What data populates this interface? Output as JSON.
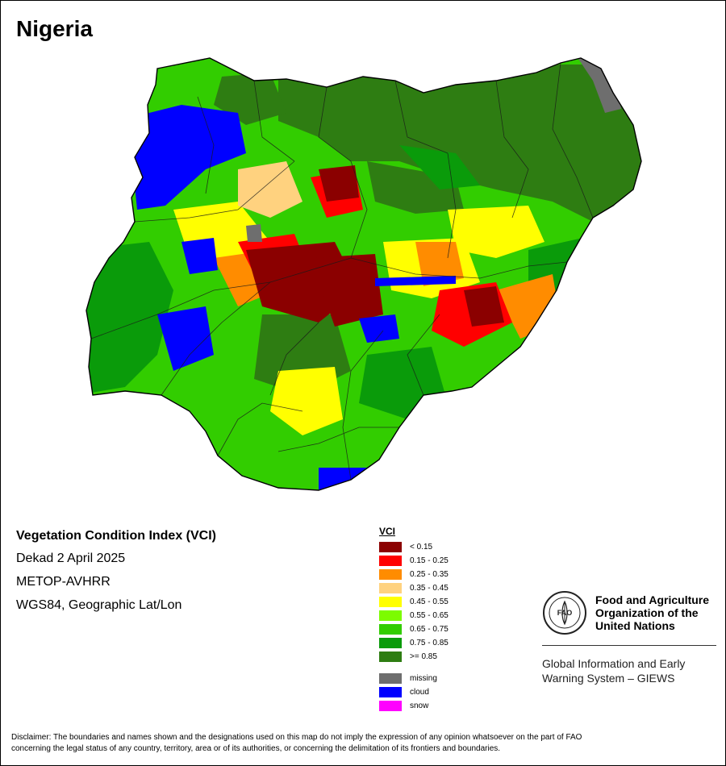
{
  "country": "Nigeria",
  "info": {
    "title": "Vegetation Condition Index (VCI)",
    "period": "Dekad 2 April 2025",
    "sensor": "METOP-AVHRR",
    "projection": "WGS84, Geographic Lat/Lon"
  },
  "legend": {
    "title": "VCI",
    "classes": [
      {
        "label": "< 0.15",
        "color": "#8b0000"
      },
      {
        "label": "0.15 - 0.25",
        "color": "#ff0000"
      },
      {
        "label": "0.25 - 0.35",
        "color": "#ff8c00"
      },
      {
        "label": "0.35 - 0.45",
        "color": "#ffd27f"
      },
      {
        "label": "0.45 - 0.55",
        "color": "#ffff00"
      },
      {
        "label": "0.55 - 0.65",
        "color": "#7cfc00"
      },
      {
        "label": "0.65 - 0.75",
        "color": "#32cd00"
      },
      {
        "label": "0.75 - 0.85",
        "color": "#0a9b0a"
      },
      {
        "label": ">= 0.85",
        "color": "#2e7d12"
      }
    ],
    "special": [
      {
        "label": "missing",
        "color": "#6e6e6e"
      },
      {
        "label": "cloud",
        "color": "#0000ff"
      },
      {
        "label": "snow",
        "color": "#ff00ff"
      }
    ]
  },
  "organization": {
    "name_line1": "Food and Agriculture",
    "name_line2": "Organization of the",
    "name_line3": "United Nations",
    "system_line1": "Global Information and Early",
    "system_line2": "Warning System – GIEWS",
    "logo_text": "FAO"
  },
  "disclaimer_line1": "Disclaimer: The boundaries and names shown and the designations used on this map do not imply the expression of any opinion whatsoever on the part of FAO",
  "disclaimer_line2": "concerning the legal status of any country, territory, area or of its authorities, or concerning the delimitation of its frontiers and boundaries."
}
